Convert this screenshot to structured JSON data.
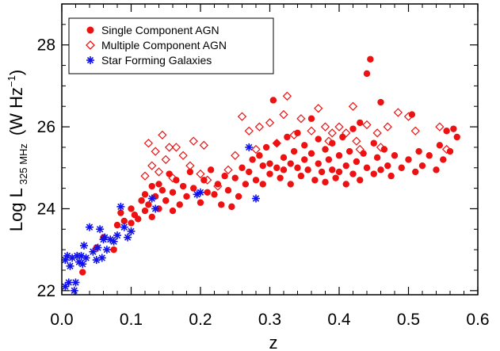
{
  "chart_data": {
    "type": "scatter",
    "xlabel": "z",
    "ylabel": {
      "main": "Log L",
      "subscript": "325 MHz",
      "unit_open": "(W Hz",
      "unit_sup": "−1",
      "unit_close": ")"
    },
    "xlim": [
      0.0,
      0.6
    ],
    "ylim": [
      21.9,
      29.0
    ],
    "x_ticks": [
      0.0,
      0.1,
      0.2,
      0.3,
      0.4,
      0.5,
      0.6
    ],
    "x_tick_labels": [
      "0.0",
      "0.1",
      "0.2",
      "0.3",
      "0.4",
      "0.5",
      "0.6"
    ],
    "y_ticks": [
      22,
      24,
      26,
      28
    ],
    "y_tick_labels": [
      "22",
      "24",
      "26",
      "28"
    ],
    "grid": false,
    "legend_position": "top-left",
    "series": [
      {
        "name": "Single Component AGN",
        "marker": "filled-circle",
        "color": "#ee1111",
        "points": [
          [
            0.03,
            22.45
          ],
          [
            0.05,
            23.05
          ],
          [
            0.06,
            23.3
          ],
          [
            0.075,
            23.0
          ],
          [
            0.08,
            23.6
          ],
          [
            0.085,
            23.9
          ],
          [
            0.09,
            23.7
          ],
          [
            0.1,
            23.65
          ],
          [
            0.1,
            24.0
          ],
          [
            0.105,
            23.85
          ],
          [
            0.11,
            23.75
          ],
          [
            0.115,
            24.2
          ],
          [
            0.12,
            23.95
          ],
          [
            0.12,
            24.35
          ],
          [
            0.125,
            24.1
          ],
          [
            0.13,
            23.8
          ],
          [
            0.13,
            24.55
          ],
          [
            0.135,
            24.3
          ],
          [
            0.14,
            24.6
          ],
          [
            0.14,
            24.0
          ],
          [
            0.145,
            24.45
          ],
          [
            0.15,
            24.2
          ],
          [
            0.155,
            24.85
          ],
          [
            0.16,
            23.95
          ],
          [
            0.16,
            24.4
          ],
          [
            0.165,
            24.7
          ],
          [
            0.17,
            24.1
          ],
          [
            0.175,
            24.55
          ],
          [
            0.18,
            24.3
          ],
          [
            0.185,
            24.9
          ],
          [
            0.19,
            24.5
          ],
          [
            0.2,
            24.15
          ],
          [
            0.205,
            24.7
          ],
          [
            0.21,
            24.4
          ],
          [
            0.215,
            24.95
          ],
          [
            0.22,
            24.35
          ],
          [
            0.225,
            24.6
          ],
          [
            0.23,
            24.1
          ],
          [
            0.235,
            24.8
          ],
          [
            0.24,
            24.45
          ],
          [
            0.245,
            24.05
          ],
          [
            0.25,
            24.75
          ],
          [
            0.255,
            24.3
          ],
          [
            0.26,
            25.0
          ],
          [
            0.265,
            24.6
          ],
          [
            0.27,
            24.9
          ],
          [
            0.275,
            25.2
          ],
          [
            0.28,
            24.7
          ],
          [
            0.285,
            25.3
          ],
          [
            0.29,
            25.05
          ],
          [
            0.29,
            24.6
          ],
          [
            0.295,
            25.5
          ],
          [
            0.3,
            25.1
          ],
          [
            0.3,
            24.85
          ],
          [
            0.305,
            26.65
          ],
          [
            0.31,
            25.0
          ],
          [
            0.31,
            25.6
          ],
          [
            0.315,
            24.75
          ],
          [
            0.32,
            25.25
          ],
          [
            0.32,
            24.95
          ],
          [
            0.325,
            25.75
          ],
          [
            0.33,
            25.1
          ],
          [
            0.33,
            24.6
          ],
          [
            0.335,
            25.4
          ],
          [
            0.34,
            25.0
          ],
          [
            0.34,
            25.85
          ],
          [
            0.345,
            24.8
          ],
          [
            0.35,
            25.2
          ],
          [
            0.35,
            25.55
          ],
          [
            0.355,
            24.95
          ],
          [
            0.36,
            25.35
          ],
          [
            0.36,
            26.2
          ],
          [
            0.365,
            24.7
          ],
          [
            0.37,
            25.1
          ],
          [
            0.37,
            25.7
          ],
          [
            0.375,
            24.9
          ],
          [
            0.38,
            25.45
          ],
          [
            0.38,
            24.65
          ],
          [
            0.385,
            25.2
          ],
          [
            0.39,
            24.95
          ],
          [
            0.39,
            25.6
          ],
          [
            0.395,
            24.75
          ],
          [
            0.4,
            25.3
          ],
          [
            0.4,
            24.9
          ],
          [
            0.405,
            25.75
          ],
          [
            0.41,
            25.05
          ],
          [
            0.41,
            24.6
          ],
          [
            0.415,
            25.4
          ],
          [
            0.42,
            24.85
          ],
          [
            0.42,
            25.95
          ],
          [
            0.425,
            25.15
          ],
          [
            0.43,
            24.7
          ],
          [
            0.43,
            26.1
          ],
          [
            0.435,
            25.35
          ],
          [
            0.44,
            27.3
          ],
          [
            0.44,
            25.0
          ],
          [
            0.445,
            27.65
          ],
          [
            0.45,
            25.6
          ],
          [
            0.45,
            24.85
          ],
          [
            0.455,
            25.25
          ],
          [
            0.46,
            26.6
          ],
          [
            0.46,
            24.95
          ],
          [
            0.465,
            25.45
          ],
          [
            0.47,
            25.05
          ],
          [
            0.475,
            24.8
          ],
          [
            0.48,
            25.3
          ],
          [
            0.49,
            25.0
          ],
          [
            0.5,
            25.2
          ],
          [
            0.505,
            26.3
          ],
          [
            0.51,
            24.9
          ],
          [
            0.515,
            25.4
          ],
          [
            0.52,
            25.05
          ],
          [
            0.53,
            25.3
          ],
          [
            0.54,
            24.95
          ],
          [
            0.545,
            25.55
          ],
          [
            0.55,
            25.2
          ],
          [
            0.555,
            25.9
          ],
          [
            0.56,
            25.4
          ],
          [
            0.565,
            25.95
          ],
          [
            0.57,
            25.75
          ]
        ]
      },
      {
        "name": "Multiple Component AGN",
        "marker": "open-diamond",
        "color": "#ee1111",
        "points": [
          [
            0.12,
            24.8
          ],
          [
            0.125,
            25.6
          ],
          [
            0.13,
            25.05
          ],
          [
            0.135,
            25.4
          ],
          [
            0.14,
            24.9
          ],
          [
            0.145,
            25.8
          ],
          [
            0.15,
            25.2
          ],
          [
            0.155,
            25.5
          ],
          [
            0.16,
            24.75
          ],
          [
            0.165,
            25.5
          ],
          [
            0.175,
            25.3
          ],
          [
            0.185,
            25.05
          ],
          [
            0.19,
            25.65
          ],
          [
            0.2,
            24.85
          ],
          [
            0.205,
            25.55
          ],
          [
            0.21,
            24.7
          ],
          [
            0.225,
            24.55
          ],
          [
            0.24,
            24.95
          ],
          [
            0.25,
            25.3
          ],
          [
            0.26,
            26.25
          ],
          [
            0.27,
            25.9
          ],
          [
            0.28,
            25.45
          ],
          [
            0.285,
            26.0
          ],
          [
            0.3,
            26.1
          ],
          [
            0.31,
            25.6
          ],
          [
            0.32,
            26.3
          ],
          [
            0.325,
            26.75
          ],
          [
            0.335,
            25.8
          ],
          [
            0.345,
            26.2
          ],
          [
            0.36,
            25.9
          ],
          [
            0.37,
            26.45
          ],
          [
            0.38,
            26.0
          ],
          [
            0.385,
            25.65
          ],
          [
            0.39,
            25.85
          ],
          [
            0.4,
            26.0
          ],
          [
            0.41,
            25.85
          ],
          [
            0.42,
            26.5
          ],
          [
            0.425,
            25.65
          ],
          [
            0.43,
            25.45
          ],
          [
            0.44,
            26.05
          ],
          [
            0.455,
            25.85
          ],
          [
            0.46,
            25.5
          ],
          [
            0.47,
            26.0
          ],
          [
            0.485,
            26.35
          ],
          [
            0.5,
            26.25
          ],
          [
            0.51,
            25.9
          ],
          [
            0.545,
            26.0
          ],
          [
            0.555,
            25.45
          ]
        ]
      },
      {
        "name": "Star Forming Galaxies",
        "marker": "asterisk",
        "color": "#1111ee",
        "points": [
          [
            0.005,
            22.75
          ],
          [
            0.005,
            22.1
          ],
          [
            0.008,
            22.85
          ],
          [
            0.01,
            22.2
          ],
          [
            0.012,
            22.6
          ],
          [
            0.015,
            22.8
          ],
          [
            0.018,
            22.0
          ],
          [
            0.02,
            22.2
          ],
          [
            0.022,
            22.85
          ],
          [
            0.025,
            22.7
          ],
          [
            0.028,
            22.85
          ],
          [
            0.03,
            22.65
          ],
          [
            0.032,
            23.1
          ],
          [
            0.035,
            22.8
          ],
          [
            0.04,
            23.55
          ],
          [
            0.045,
            22.95
          ],
          [
            0.05,
            22.75
          ],
          [
            0.052,
            23.05
          ],
          [
            0.055,
            23.5
          ],
          [
            0.058,
            22.8
          ],
          [
            0.06,
            23.25
          ],
          [
            0.062,
            23.3
          ],
          [
            0.065,
            23.0
          ],
          [
            0.07,
            23.25
          ],
          [
            0.075,
            23.2
          ],
          [
            0.08,
            23.35
          ],
          [
            0.085,
            24.05
          ],
          [
            0.09,
            23.55
          ],
          [
            0.095,
            23.3
          ],
          [
            0.1,
            23.45
          ],
          [
            0.13,
            24.25
          ],
          [
            0.135,
            24.0
          ],
          [
            0.195,
            24.35
          ],
          [
            0.2,
            24.4
          ],
          [
            0.27,
            25.5
          ],
          [
            0.28,
            24.25
          ]
        ]
      }
    ]
  }
}
